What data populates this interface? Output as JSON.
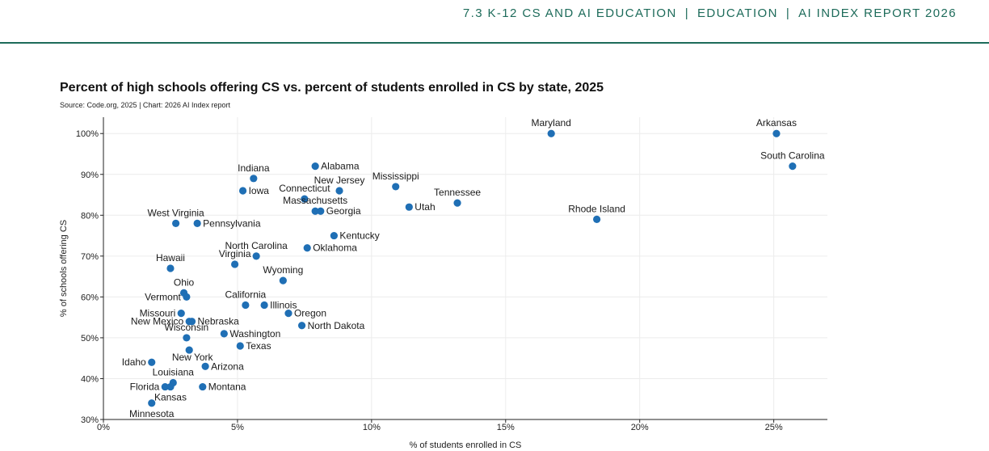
{
  "header": {
    "section": "7.3 K-12 CS AND AI EDUCATION",
    "chapter": "EDUCATION",
    "report": "AI INDEX REPORT 2026",
    "separator": "|"
  },
  "colors": {
    "accent": "#1d6b5a",
    "point": "#1f6fb5",
    "grid": "#ececec"
  },
  "chart_data": {
    "type": "scatter",
    "title": "Percent of high schools offering CS vs. percent of students enrolled in CS by state, 2025",
    "source": "Source: Code.org, 2025 | Chart: 2026 AI Index report",
    "xlabel": "% of students enrolled in CS",
    "ylabel": "% of schools offering CS",
    "xlim": [
      0,
      27
    ],
    "ylim": [
      30,
      104
    ],
    "xticks": [
      0,
      5,
      10,
      15,
      20,
      25
    ],
    "xtick_labels": [
      "0%",
      "5%",
      "10%",
      "15%",
      "20%",
      "25%"
    ],
    "yticks": [
      30,
      40,
      50,
      60,
      70,
      80,
      90,
      100
    ],
    "ytick_labels": [
      "30%",
      "40%",
      "50%",
      "60%",
      "70%",
      "80%",
      "90%",
      "100%"
    ],
    "grid": true,
    "points": [
      {
        "label": "Arkansas",
        "x": 25.1,
        "y": 100,
        "pos": "above"
      },
      {
        "label": "Maryland",
        "x": 16.7,
        "y": 100,
        "pos": "above"
      },
      {
        "label": "South Carolina",
        "x": 25.7,
        "y": 92,
        "pos": "above"
      },
      {
        "label": "Rhode Island",
        "x": 18.4,
        "y": 79,
        "pos": "above"
      },
      {
        "label": "Tennessee",
        "x": 13.2,
        "y": 83,
        "pos": "above"
      },
      {
        "label": "Mississippi",
        "x": 10.9,
        "y": 87,
        "pos": "above"
      },
      {
        "label": "Utah",
        "x": 11.4,
        "y": 82,
        "pos": "right"
      },
      {
        "label": "Alabama",
        "x": 7.9,
        "y": 92,
        "pos": "right"
      },
      {
        "label": "New Jersey",
        "x": 8.8,
        "y": 86,
        "pos": "above"
      },
      {
        "label": "Connecticut",
        "x": 7.5,
        "y": 84,
        "pos": "above"
      },
      {
        "label": "Massachusetts",
        "x": 7.9,
        "y": 81,
        "pos": "above"
      },
      {
        "label": "Georgia",
        "x": 8.1,
        "y": 81,
        "pos": "right"
      },
      {
        "label": "Kentucky",
        "x": 8.6,
        "y": 75,
        "pos": "right"
      },
      {
        "label": "Oklahoma",
        "x": 7.6,
        "y": 72,
        "pos": "right"
      },
      {
        "label": "Indiana",
        "x": 5.6,
        "y": 89,
        "pos": "above"
      },
      {
        "label": "Iowa",
        "x": 5.2,
        "y": 86,
        "pos": "right"
      },
      {
        "label": "West Virginia",
        "x": 2.7,
        "y": 78,
        "pos": "above"
      },
      {
        "label": "Pennsylvania",
        "x": 3.5,
        "y": 78,
        "pos": "right"
      },
      {
        "label": "North Carolina",
        "x": 5.7,
        "y": 70,
        "pos": "above"
      },
      {
        "label": "Virginia",
        "x": 4.9,
        "y": 68,
        "pos": "above"
      },
      {
        "label": "Hawaii",
        "x": 2.5,
        "y": 67,
        "pos": "above"
      },
      {
        "label": "Wyoming",
        "x": 6.7,
        "y": 64,
        "pos": "above"
      },
      {
        "label": "Ohio",
        "x": 3.0,
        "y": 61,
        "pos": "above"
      },
      {
        "label": "Vermont",
        "x": 3.1,
        "y": 60,
        "pos": "left"
      },
      {
        "label": "California",
        "x": 5.3,
        "y": 58,
        "pos": "above"
      },
      {
        "label": "Illinois",
        "x": 6.0,
        "y": 58,
        "pos": "right"
      },
      {
        "label": "Oregon",
        "x": 6.9,
        "y": 56,
        "pos": "right"
      },
      {
        "label": "Missouri",
        "x": 2.9,
        "y": 56,
        "pos": "left"
      },
      {
        "label": "New Mexico",
        "x": 3.2,
        "y": 54,
        "pos": "left"
      },
      {
        "label": "Nebraska",
        "x": 3.3,
        "y": 54,
        "pos": "right"
      },
      {
        "label": "North Dakota",
        "x": 7.4,
        "y": 53,
        "pos": "right"
      },
      {
        "label": "Wisconsin",
        "x": 3.1,
        "y": 50,
        "pos": "above"
      },
      {
        "label": "Washington",
        "x": 4.5,
        "y": 51,
        "pos": "right"
      },
      {
        "label": "Texas",
        "x": 5.1,
        "y": 48,
        "pos": "right"
      },
      {
        "label": "New York",
        "x": 3.2,
        "y": 47,
        "pos": "belowright"
      },
      {
        "label": "Idaho",
        "x": 1.8,
        "y": 44,
        "pos": "left"
      },
      {
        "label": "Arizona",
        "x": 3.8,
        "y": 43,
        "pos": "right"
      },
      {
        "label": "Louisiana",
        "x": 2.6,
        "y": 39,
        "pos": "above"
      },
      {
        "label": "Montana",
        "x": 3.7,
        "y": 38,
        "pos": "right"
      },
      {
        "label": "Florida",
        "x": 2.3,
        "y": 38,
        "pos": "left"
      },
      {
        "label": "Kansas",
        "x": 2.5,
        "y": 38,
        "pos": "below"
      },
      {
        "label": "Minnesota",
        "x": 1.8,
        "y": 34,
        "pos": "below"
      }
    ]
  }
}
